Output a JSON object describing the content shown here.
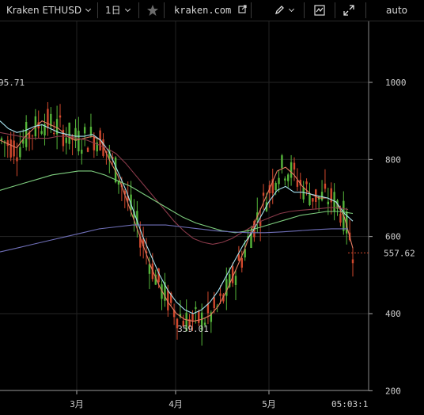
{
  "toolbar": {
    "symbol": "Kraken ETHUSD",
    "interval": "1日",
    "site": "kraken.com",
    "scale_mode": "auto",
    "icons": [
      "chevron-down-icon",
      "star-icon",
      "external-link-icon",
      "pencil-icon",
      "indicator-icon",
      "fullscreen-icon"
    ]
  },
  "chart_data": {
    "type": "candlestick",
    "x_ticks": [
      "3月",
      "4月",
      "5月"
    ],
    "y_ticks": [
      1000,
      800,
      600,
      400,
      200
    ],
    "ylim": [
      200,
      1150
    ],
    "last_price": "557.62",
    "last_time": "05:03:1",
    "high_label": "95.71",
    "low_label": "359.01",
    "moving_averages": [
      {
        "color": "#e37b62",
        "values": [
          850,
          840,
          830,
          860,
          880,
          900,
          890,
          880,
          860,
          850,
          855,
          860,
          850,
          800,
          760,
          700,
          640,
          580,
          520,
          470,
          430,
          400,
          385,
          380,
          385,
          395,
          420,
          460,
          510,
          560,
          620,
          670,
          720,
          770,
          780,
          760,
          730,
          710,
          700,
          700,
          690,
          650,
          570
        ]
      },
      {
        "color": "#a7e3f0",
        "values": [
          900,
          880,
          870,
          875,
          885,
          890,
          880,
          870,
          865,
          860,
          860,
          865,
          850,
          820,
          770,
          720,
          660,
          600,
          550,
          500,
          460,
          430,
          410,
          400,
          410,
          430,
          460,
          500,
          540,
          580,
          610,
          650,
          690,
          720,
          730,
          715,
          715,
          710,
          705,
          700,
          690,
          660,
          640
        ]
      },
      {
        "color": "#8a3a4a",
        "values": [
          870,
          865,
          860,
          855,
          855,
          855,
          860,
          860,
          855,
          850,
          840,
          830,
          815,
          790,
          760,
          730,
          700,
          670,
          640,
          615,
          595,
          585,
          580,
          585,
          595,
          610,
          625,
          640,
          650,
          660,
          665,
          668,
          670,
          672,
          675,
          675,
          670
        ]
      },
      {
        "color": "#7fcf7f",
        "values": [
          720,
          730,
          740,
          750,
          760,
          765,
          770,
          770,
          760,
          745,
          730,
          710,
          690,
          670,
          650,
          635,
          625,
          615,
          610,
          615,
          625,
          635,
          645,
          655,
          660,
          665,
          665,
          660
        ]
      },
      {
        "color": "#6f6fb8",
        "values": [
          560,
          570,
          580,
          590,
          600,
          610,
          620,
          625,
          630,
          630,
          630,
          625,
          620,
          615,
          612,
          610,
          610,
          612,
          615,
          618,
          620,
          620
        ]
      }
    ]
  }
}
